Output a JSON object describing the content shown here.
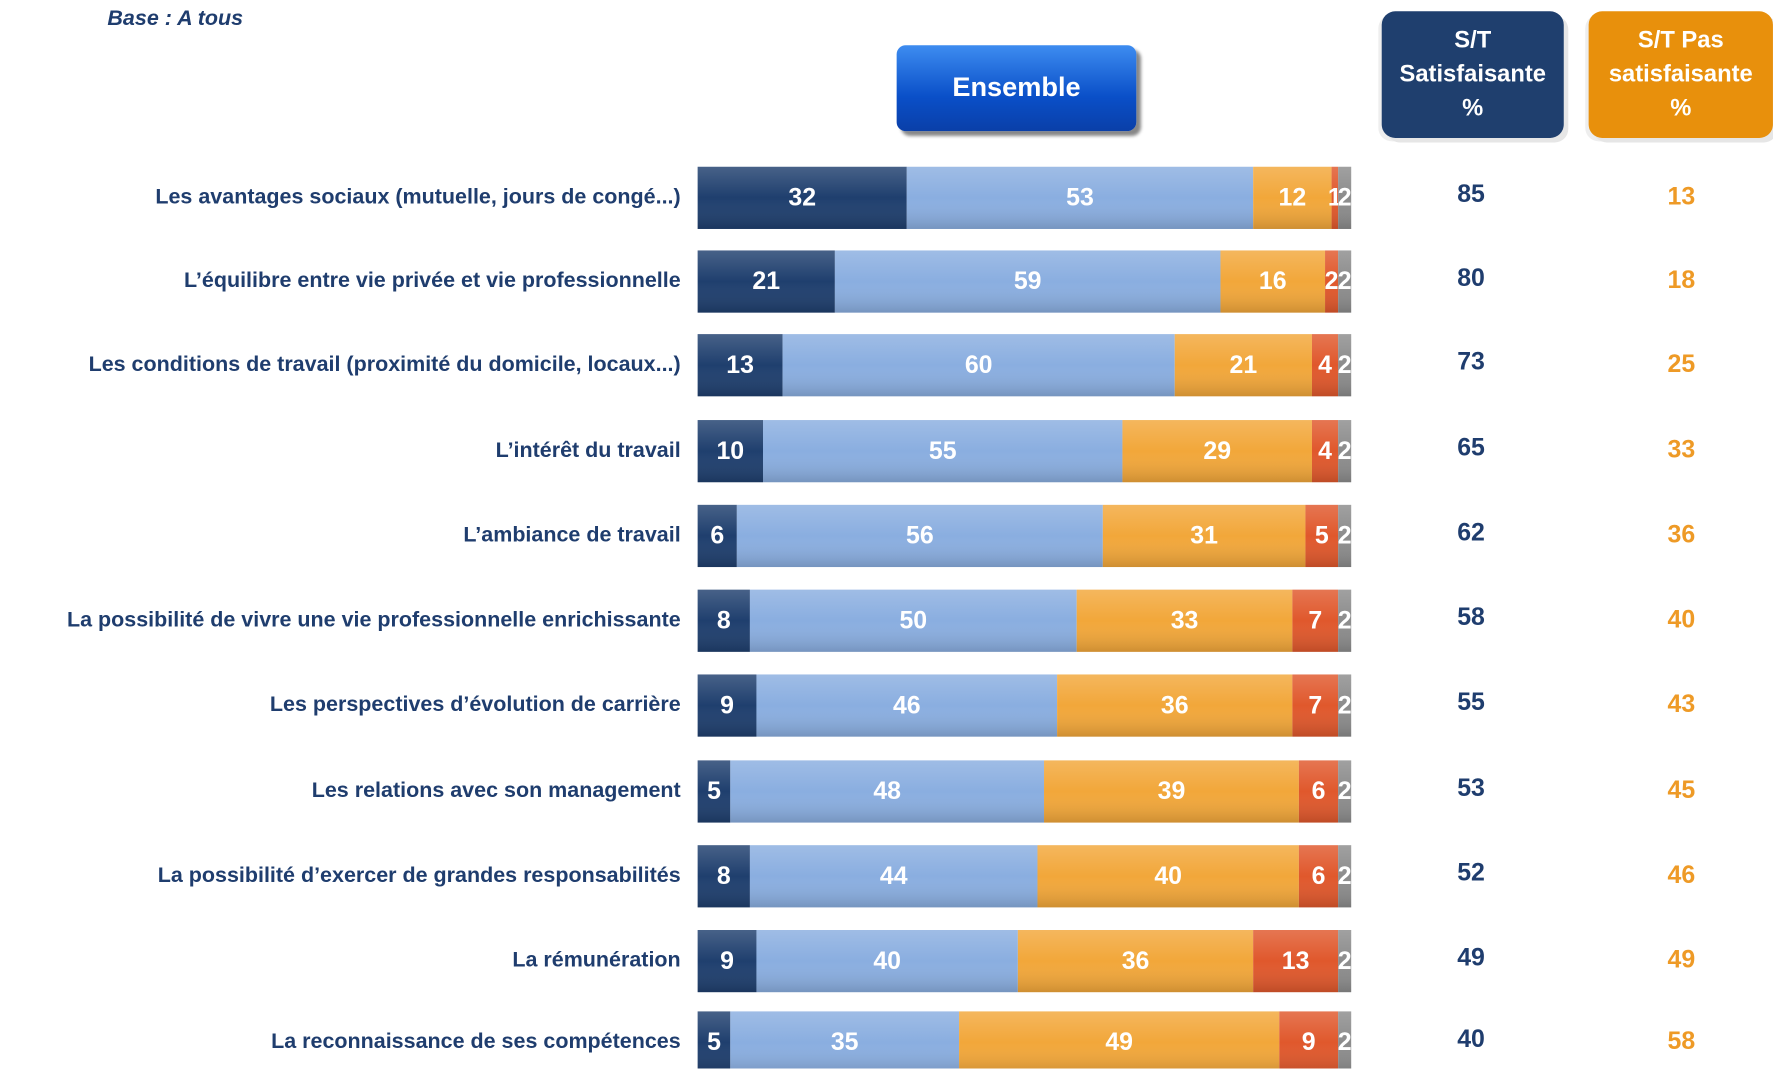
{
  "chart_data": {
    "type": "stacked_bar_horizontal",
    "note": "Base : A tous",
    "button": "Ensemble",
    "categories": [
      "Les avantages sociaux (mutuelle, jours de congé...)",
      "L’équilibre entre vie privée et vie professionnelle",
      "Les conditions de travail (proximité du domicile, locaux...)",
      "L’intérêt du travail",
      "L’ambiance de travail",
      "La possibilité de vivre une vie professionnelle enrichissante",
      "Les perspectives d’évolution de carrière",
      "Les relations avec son management",
      "La possibilité d’exercer de grandes responsabilités",
      "La rémunération",
      "La reconnaissance de ses compétences"
    ],
    "xlim": [
      0,
      100
    ],
    "series": [
      {
        "color": "#1f3f6e",
        "values": [
          32,
          21,
          13,
          10,
          6,
          8,
          9,
          5,
          8,
          9,
          5
        ]
      },
      {
        "color": "#8aaee0",
        "values": [
          53,
          59,
          60,
          55,
          56,
          50,
          46,
          48,
          44,
          40,
          35
        ]
      },
      {
        "color": "#f2a73a",
        "values": [
          12,
          16,
          21,
          29,
          31,
          33,
          36,
          39,
          40,
          36,
          49
        ]
      },
      {
        "color": "#e0582c",
        "values": [
          1,
          2,
          4,
          4,
          5,
          7,
          7,
          6,
          6,
          13,
          9
        ]
      },
      {
        "color": "#8c8c8c",
        "values": [
          2,
          2,
          2,
          2,
          2,
          2,
          2,
          2,
          2,
          2,
          2
        ]
      }
    ],
    "columns": [
      {
        "header": [
          "S/T",
          "Satisfaisante",
          "%"
        ],
        "color": "#1f3d6e",
        "header_color": "#1f3f6e",
        "values": [
          85,
          80,
          73,
          65,
          62,
          58,
          55,
          53,
          52,
          49,
          40
        ]
      },
      {
        "header": [
          "S/T Pas",
          "satisfaisante",
          "%"
        ],
        "color": "#ee9a26",
        "header_color": "#e8900c",
        "values": [
          13,
          18,
          25,
          33,
          36,
          40,
          43,
          45,
          46,
          49,
          58
        ]
      }
    ]
  }
}
